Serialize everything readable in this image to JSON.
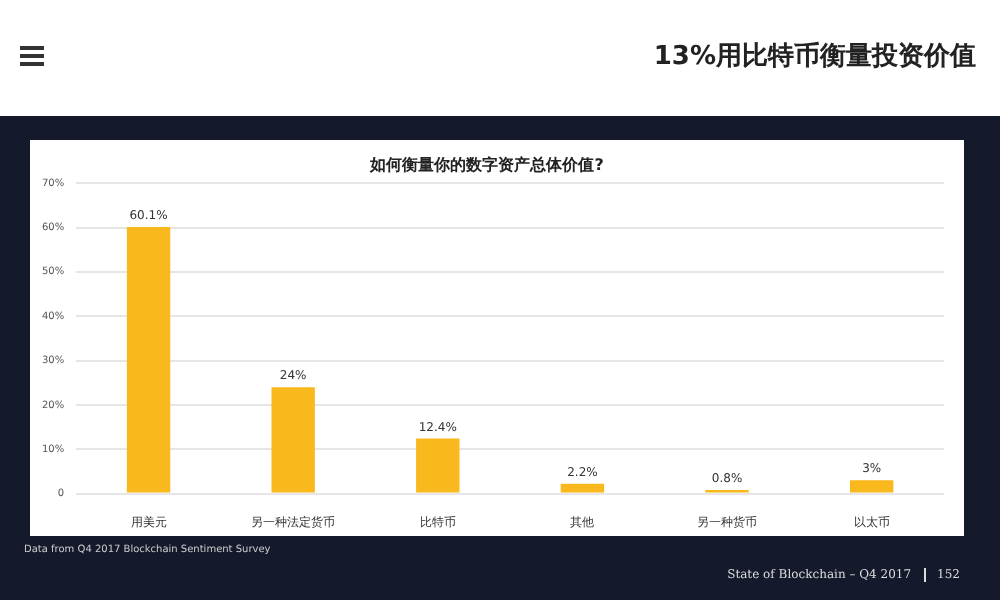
{
  "chart_data": {
    "type": "bar",
    "title": "如何衡量你的数字资产总体价值?",
    "categories": [
      "用美元",
      "另一种法定货币",
      "比特币",
      "其他",
      "另一种货币",
      "以太币"
    ],
    "values": [
      60.1,
      24,
      12.4,
      2.2,
      0.8,
      3
    ],
    "value_labels": [
      "60.1%",
      "24%",
      "12.4%",
      "2.2%",
      "0.8%",
      "3%"
    ],
    "color": "#f9b81b",
    "ylim": [
      0,
      70
    ],
    "yticks": [
      {
        "value": 0,
        "label": "0"
      },
      {
        "value": 10,
        "label": "10%"
      },
      {
        "value": 20,
        "label": "20%"
      },
      {
        "value": 30,
        "label": "30%"
      },
      {
        "value": 40,
        "label": "40%"
      },
      {
        "value": 50,
        "label": "50%"
      },
      {
        "value": 60,
        "label": "60%"
      },
      {
        "value": 70,
        "label": "70%"
      }
    ],
    "grid": "y",
    "legend": false,
    "annotations": [
      "13%用比特币衡量投资价值",
      "Data from Q4 2017 Blockchain Sentiment Survey",
      "State of Blockchain – Q4 2017",
      "152"
    ]
  }
}
